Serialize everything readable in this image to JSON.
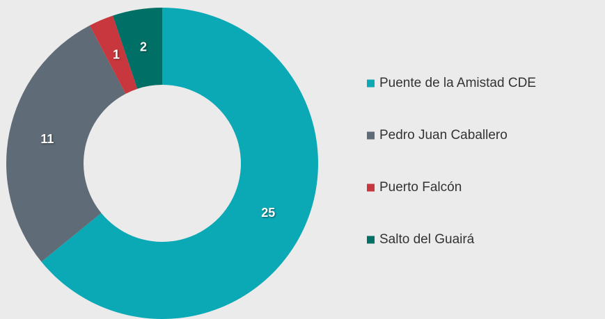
{
  "chart_data": {
    "type": "donut",
    "categories": [
      "Puente de la Amistad CDE",
      "Pedro Juan Caballero",
      "Puerto Falcón",
      "Salto del Guairá"
    ],
    "values": [
      25,
      11,
      1,
      2
    ],
    "colors": [
      "#0ba9b5",
      "#5f6b76",
      "#c8373d",
      "#006f65"
    ],
    "legend": "right"
  }
}
